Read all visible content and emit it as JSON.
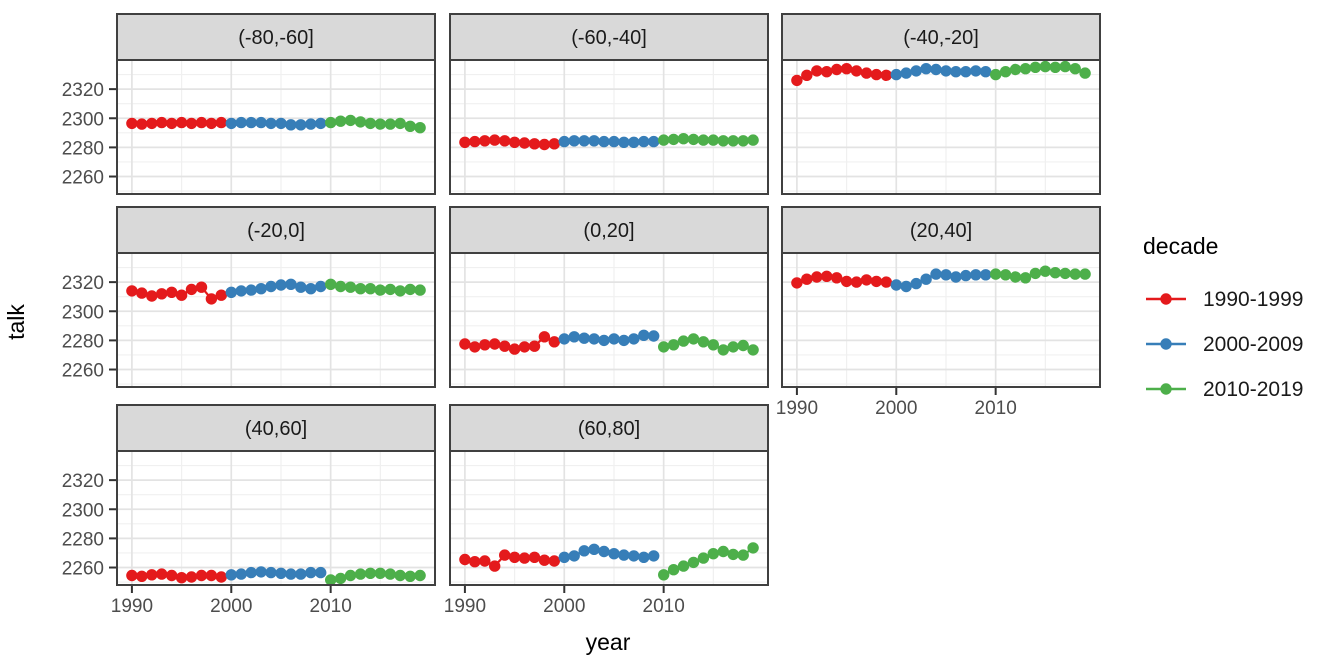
{
  "figure": {
    "y_axis_title": "talk",
    "x_axis_title": "year"
  },
  "legend": {
    "title": "decade",
    "entries": [
      {
        "label": "1990-1999",
        "color": "#E41A1C"
      },
      {
        "label": "2000-2009",
        "color": "#377EB8"
      },
      {
        "label": "2010-2019",
        "color": "#4DAF4A"
      }
    ]
  },
  "chart_data": {
    "type": "line",
    "title": "",
    "xlabel": "year",
    "ylabel": "talk",
    "facet_variable": "latitude band",
    "facet_layout": "3 columns x 3 rows, 8 facets, bottom-right cell empty",
    "legend_position": "right",
    "grid": "on",
    "x_ticks": [
      1990,
      2000,
      2010
    ],
    "x_minor_ticks": [
      1995,
      2005,
      2015
    ],
    "y_ticks": [
      2260,
      2280,
      2300,
      2320
    ],
    "y_minor_ticks": [
      2250,
      2270,
      2290,
      2310,
      2330
    ],
    "xlim": [
      1988.5,
      2020.5
    ],
    "ylim": [
      2248,
      2340
    ],
    "facets": [
      {
        "label": "(-80,-60]",
        "series": [
          {
            "name": "1990-1999",
            "start_year": 1990,
            "values": [
              2296.5,
              2296,
              2296.5,
              2297,
              2296.5,
              2297,
              2296.5,
              2297,
              2296.5,
              2297
            ]
          },
          {
            "name": "2000-2009",
            "start_year": 2000,
            "values": [
              2296.5,
              2297,
              2297,
              2297,
              2296.5,
              2296.5,
              2295.5,
              2295.5,
              2296,
              2296.5
            ]
          },
          {
            "name": "2010-2019",
            "start_year": 2010,
            "values": [
              2297,
              2298,
              2298.5,
              2297.5,
              2296.5,
              2296,
              2296,
              2296.5,
              2294.5,
              2293.5
            ]
          }
        ]
      },
      {
        "label": "(-60,-40]",
        "series": [
          {
            "name": "1990-1999",
            "start_year": 1990,
            "values": [
              2283.5,
              2284,
              2284.5,
              2285,
              2284.5,
              2283.5,
              2283,
              2282.5,
              2282,
              2282.5
            ]
          },
          {
            "name": "2000-2009",
            "start_year": 2000,
            "values": [
              2284,
              2284.5,
              2284.5,
              2284.5,
              2284,
              2284,
              2283.5,
              2283.5,
              2284,
              2284
            ]
          },
          {
            "name": "2010-2019",
            "start_year": 2010,
            "values": [
              2285,
              2285.5,
              2286,
              2285.5,
              2285,
              2285,
              2284.5,
              2284.5,
              2284.5,
              2285
            ]
          }
        ]
      },
      {
        "label": "(-40,-20]",
        "series": [
          {
            "name": "1990-1999",
            "start_year": 1990,
            "values": [
              2326,
              2329.5,
              2332.5,
              2332,
              2333.5,
              2334,
              2332.5,
              2331,
              2330,
              2329.5
            ]
          },
          {
            "name": "2000-2009",
            "start_year": 2000,
            "values": [
              2330,
              2331,
              2332.5,
              2334,
              2333.5,
              2332.5,
              2332,
              2332,
              2332.5,
              2332
            ]
          },
          {
            "name": "2010-2019",
            "start_year": 2010,
            "values": [
              2330,
              2332,
              2333.5,
              2334,
              2335,
              2335.5,
              2335,
              2335.5,
              2334,
              2331
            ]
          }
        ]
      },
      {
        "label": "(-20,0]",
        "series": [
          {
            "name": "1990-1999",
            "start_year": 1990,
            "values": [
              2314,
              2312.5,
              2310.5,
              2312,
              2313,
              2311,
              2315,
              2316.5,
              2308.5,
              2311
            ]
          },
          {
            "name": "2000-2009",
            "start_year": 2000,
            "values": [
              2313,
              2314,
              2314.5,
              2315.5,
              2317,
              2318,
              2318.5,
              2316.5,
              2315.5,
              2317
            ]
          },
          {
            "name": "2010-2019",
            "start_year": 2010,
            "values": [
              2318.5,
              2317,
              2316.5,
              2315.5,
              2315.5,
              2314.5,
              2315,
              2314,
              2315,
              2314.5
            ]
          }
        ]
      },
      {
        "label": "(0,20]",
        "series": [
          {
            "name": "1990-1999",
            "start_year": 1990,
            "values": [
              2277.5,
              2275.5,
              2277,
              2277.5,
              2276,
              2274,
              2275.5,
              2276,
              2282.5,
              2279
            ]
          },
          {
            "name": "2000-2009",
            "start_year": 2000,
            "values": [
              2281,
              2282.5,
              2281.5,
              2281,
              2280,
              2281,
              2280,
              2281,
              2283.5,
              2283
            ]
          },
          {
            "name": "2010-2019",
            "start_year": 2010,
            "values": [
              2275.5,
              2277,
              2279.5,
              2281,
              2279,
              2277,
              2273.5,
              2275.5,
              2276.5,
              2273.5
            ]
          }
        ]
      },
      {
        "label": "(20,40]",
        "series": [
          {
            "name": "1990-1999",
            "start_year": 1990,
            "values": [
              2319.5,
              2322,
              2323.5,
              2324,
              2323,
              2320.5,
              2320,
              2321.5,
              2320.5,
              2320
            ]
          },
          {
            "name": "2000-2009",
            "start_year": 2000,
            "values": [
              2318,
              2317,
              2319,
              2322,
              2325.5,
              2325,
              2323.5,
              2324.5,
              2325,
              2325
            ]
          },
          {
            "name": "2010-2019",
            "start_year": 2010,
            "values": [
              2325.5,
              2325,
              2323.5,
              2323,
              2326,
              2327.5,
              2326.5,
              2326,
              2325.5,
              2325.5
            ]
          }
        ]
      },
      {
        "label": "(40,60]",
        "series": [
          {
            "name": "1990-1999",
            "start_year": 1990,
            "values": [
              2254.5,
              2254,
              2255,
              2255.5,
              2254.5,
              2253,
              2253.5,
              2254.5,
              2254.5,
              2253.5
            ]
          },
          {
            "name": "2000-2009",
            "start_year": 2000,
            "values": [
              2255,
              2255.5,
              2256.5,
              2257,
              2256.5,
              2256,
              2255.5,
              2255.5,
              2256.5,
              2256.5
            ]
          },
          {
            "name": "2010-2019",
            "start_year": 2010,
            "values": [
              2251.5,
              2252.5,
              2254.5,
              2255.5,
              2256,
              2256,
              2255.5,
              2254.5,
              2254,
              2254.5
            ]
          }
        ]
      },
      {
        "label": "(60,80]",
        "series": [
          {
            "name": "1990-1999",
            "start_year": 1990,
            "values": [
              2265.5,
              2264,
              2264.5,
              2261,
              2268.5,
              2267,
              2266.5,
              2267,
              2265,
              2264.5
            ]
          },
          {
            "name": "2000-2009",
            "start_year": 2000,
            "values": [
              2267,
              2268,
              2271.5,
              2272.5,
              2271,
              2269.5,
              2268.5,
              2268,
              2267,
              2268
            ]
          },
          {
            "name": "2010-2019",
            "start_year": 2010,
            "values": [
              2255,
              2258.5,
              2261,
              2263.5,
              2266.5,
              2269.5,
              2271,
              2269,
              2268.5,
              2273.5
            ]
          }
        ]
      }
    ]
  }
}
